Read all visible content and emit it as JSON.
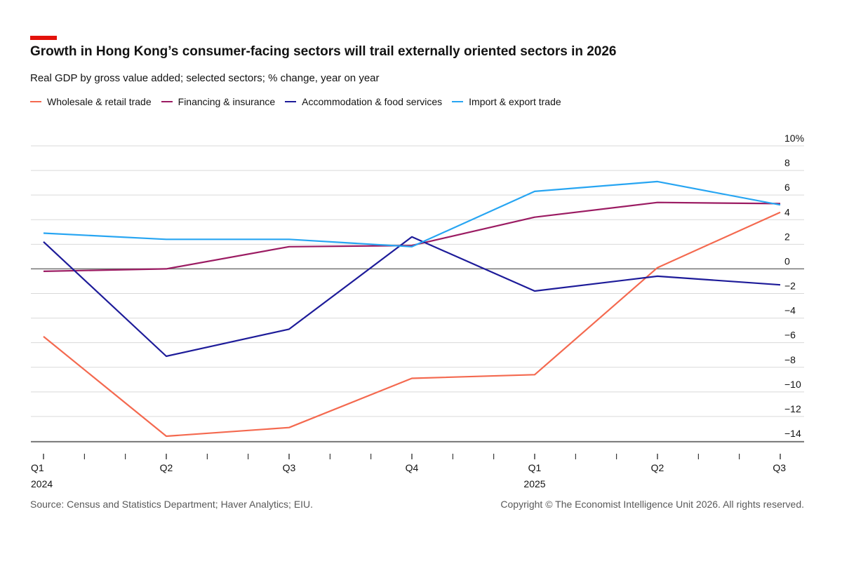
{
  "header": {
    "title": "Growth in Hong Kong’s consumer-facing sectors will trail externally oriented sectors in 2026",
    "subtitle": "Real GDP by gross value added; selected sectors; % change, year on year"
  },
  "footer": {
    "source": "Source: Census and Statistics Department; Haver Analytics; EIU.",
    "copyright": "Copyright © The Economist Intelligence Unit 2026. All rights reserved."
  },
  "colors": {
    "accent": "#e3120b"
  },
  "chart_data": {
    "type": "line",
    "x": [
      "Q1 2024",
      "Q2 2024",
      "Q3 2024",
      "Q4 2024",
      "Q1 2025",
      "Q2 2025",
      "Q3 2025"
    ],
    "x_tick_labels": [
      {
        "quarter": "Q1",
        "year": "2024"
      },
      {
        "quarter": "Q2",
        "year": ""
      },
      {
        "quarter": "Q3",
        "year": ""
      },
      {
        "quarter": "Q4",
        "year": ""
      },
      {
        "quarter": "Q1",
        "year": "2025"
      },
      {
        "quarter": "Q2",
        "year": ""
      },
      {
        "quarter": "Q3",
        "year": ""
      }
    ],
    "minor_ticks_between_quarters": 2,
    "y_ticks": [
      10,
      8,
      6,
      4,
      2,
      0,
      -2,
      -4,
      -6,
      -8,
      -10,
      -12,
      -14
    ],
    "y_tick_labels": [
      "10%",
      "8",
      "6",
      "4",
      "2",
      "0",
      "−2",
      "−4",
      "−6",
      "−8",
      "−10",
      "−12",
      "−14"
    ],
    "ylim": [
      -14,
      10
    ],
    "y_axis_side": "right",
    "grid": true,
    "legend_position": "top-left",
    "series": [
      {
        "name": "Wholesale & retail trade",
        "color": "#f4694f",
        "values": [
          -5.5,
          -13.6,
          -12.9,
          -8.9,
          -8.6,
          0.1,
          4.6
        ]
      },
      {
        "name": "Financing & insurance",
        "color": "#9b1b62",
        "values": [
          -0.2,
          0.0,
          1.8,
          1.9,
          4.2,
          5.4,
          5.3
        ]
      },
      {
        "name": "Accommodation & food services",
        "color": "#1d1b99",
        "values": [
          2.2,
          -7.1,
          -4.9,
          2.6,
          -1.8,
          -0.6,
          -1.3
        ]
      },
      {
        "name": "Import & export trade",
        "color": "#27a5f2",
        "values": [
          2.9,
          2.4,
          2.4,
          1.8,
          6.3,
          7.1,
          5.2
        ]
      }
    ]
  }
}
